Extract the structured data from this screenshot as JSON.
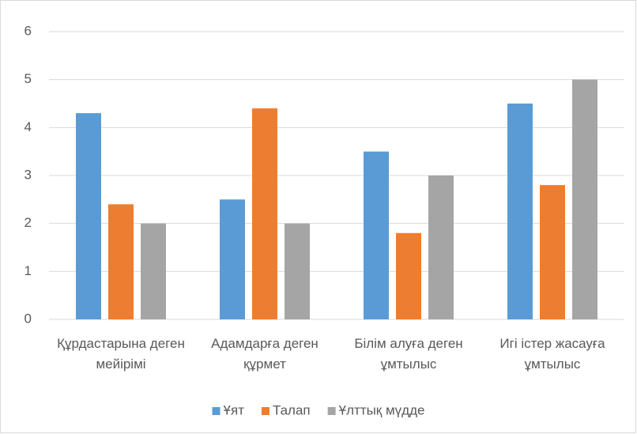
{
  "chart_data": {
    "type": "bar",
    "categories": [
      "Құрдастарына деген мейірімі",
      "Адамдарға деген құрмет",
      "Білім алуға деген ұмтылыс",
      "Игі істер жасауға ұмтылыс"
    ],
    "series": [
      {
        "name": "Ұят",
        "color": "#5b9bd5",
        "values": [
          4.3,
          2.5,
          3.5,
          4.5
        ]
      },
      {
        "name": "Талап",
        "color": "#ed7d31",
        "values": [
          2.4,
          4.4,
          1.8,
          2.8
        ]
      },
      {
        "name": "Ұлттық мүдде",
        "color": "#a5a5a5",
        "values": [
          2,
          2,
          3,
          5
        ]
      }
    ],
    "ylim": [
      0,
      6
    ],
    "yticks": [
      0,
      1,
      2,
      3,
      4,
      5,
      6
    ],
    "grid": true,
    "legend": "bottom"
  }
}
